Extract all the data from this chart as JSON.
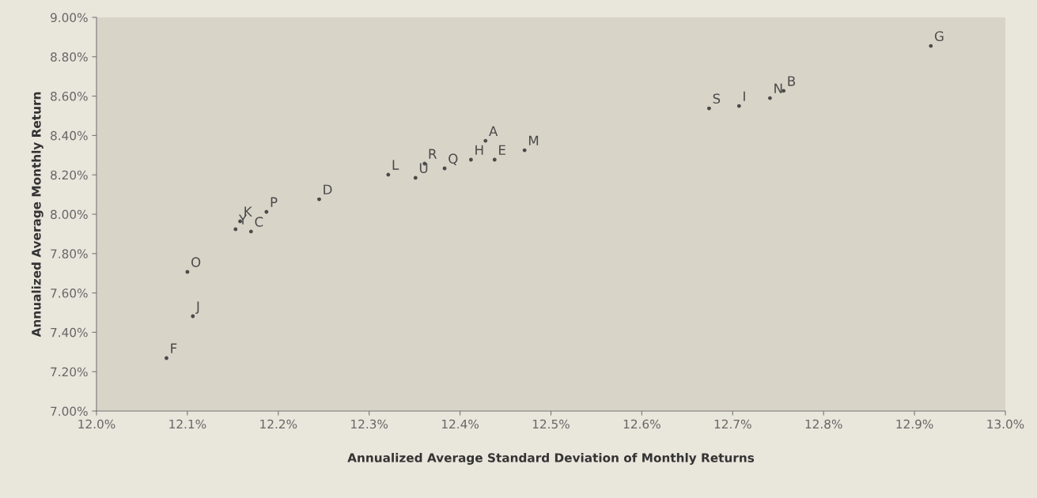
{
  "chart_data": {
    "type": "scatter",
    "xlabel": "Annualized Average Standard Deviation of Monthly Returns",
    "ylabel": "Annualized Average Monthly Return",
    "xlim": [
      12.0,
      13.0
    ],
    "ylim": [
      7.0,
      9.0
    ],
    "xticks": [
      {
        "value": 12.0,
        "label": "12.0%"
      },
      {
        "value": 12.1,
        "label": "12.1%"
      },
      {
        "value": 12.2,
        "label": "12.2%"
      },
      {
        "value": 12.3,
        "label": "12.3%"
      },
      {
        "value": 12.4,
        "label": "12.4%"
      },
      {
        "value": 12.5,
        "label": "12.5%"
      },
      {
        "value": 12.6,
        "label": "12.6%"
      },
      {
        "value": 12.7,
        "label": "12.7%"
      },
      {
        "value": 12.8,
        "label": "12.8%"
      },
      {
        "value": 12.9,
        "label": "12.9%"
      },
      {
        "value": 13.0,
        "label": "13.0%"
      }
    ],
    "yticks": [
      {
        "value": 7.0,
        "label": "7.00%"
      },
      {
        "value": 7.2,
        "label": "7.20%"
      },
      {
        "value": 7.4,
        "label": "7.40%"
      },
      {
        "value": 7.6,
        "label": "7.60%"
      },
      {
        "value": 7.8,
        "label": "7.80%"
      },
      {
        "value": 8.0,
        "label": "8.00%"
      },
      {
        "value": 8.2,
        "label": "8.20%"
      },
      {
        "value": 8.4,
        "label": "8.40%"
      },
      {
        "value": 8.6,
        "label": "8.60%"
      },
      {
        "value": 8.8,
        "label": "8.80%"
      },
      {
        "value": 9.0,
        "label": "9.00%"
      }
    ],
    "grid": false,
    "legend": false,
    "marker": "circle",
    "series": [
      {
        "color": "#4a4a4a",
        "x": [
          12.918,
          12.674,
          12.707,
          12.741,
          12.756,
          12.428,
          12.471,
          12.438,
          12.412,
          12.383,
          12.361,
          12.351,
          12.321,
          12.245,
          12.187,
          12.158,
          12.153,
          12.17,
          12.1,
          12.106,
          12.077
        ],
        "values": [
          8.855,
          8.538,
          8.55,
          8.59,
          8.627,
          8.373,
          8.325,
          8.277,
          8.277,
          8.233,
          8.257,
          8.185,
          8.201,
          8.076,
          8.012,
          7.964,
          7.924,
          7.912,
          7.707,
          7.482,
          7.269
        ],
        "value_labels": [
          "G",
          "S",
          "I",
          "N",
          "B",
          "A",
          "M",
          "E",
          "H",
          "Q",
          "R",
          "U",
          "L",
          "D",
          "P",
          "K",
          "Y",
          "C",
          "O",
          "J",
          "F"
        ]
      }
    ]
  }
}
